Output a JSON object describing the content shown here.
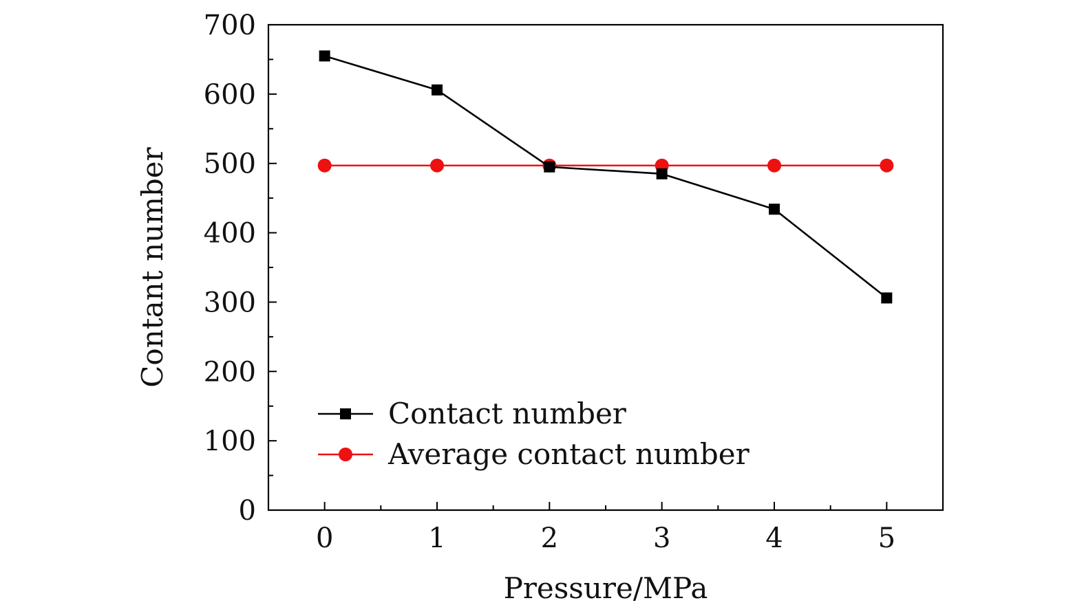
{
  "chart_data": {
    "type": "line",
    "title": "",
    "xlabel": "Pressure/MPa",
    "ylabel": "Contant number",
    "x": [
      0,
      1,
      2,
      3,
      4,
      5
    ],
    "xlim": [
      -0.5,
      5.5
    ],
    "ylim": [
      0,
      700
    ],
    "xticks": [
      0,
      1,
      2,
      3,
      4,
      5
    ],
    "xtick_labels": [
      "0",
      "1",
      "2",
      "3",
      "4",
      "5"
    ],
    "yticks": [
      0,
      100,
      200,
      300,
      400,
      500,
      600,
      700
    ],
    "ytick_labels": [
      "0",
      "100",
      "200",
      "300",
      "400",
      "500",
      "600",
      "700"
    ],
    "grid": false,
    "legend_position": "lower-left",
    "series": [
      {
        "name": "Contact number",
        "values": [
          655,
          606,
          495,
          485,
          434,
          306
        ],
        "color": "#000000",
        "marker": "square"
      },
      {
        "name": "Average contact number",
        "values": [
          497,
          497,
          497,
          497,
          497,
          497
        ],
        "color": "#ee1111",
        "marker": "circle"
      }
    ]
  }
}
